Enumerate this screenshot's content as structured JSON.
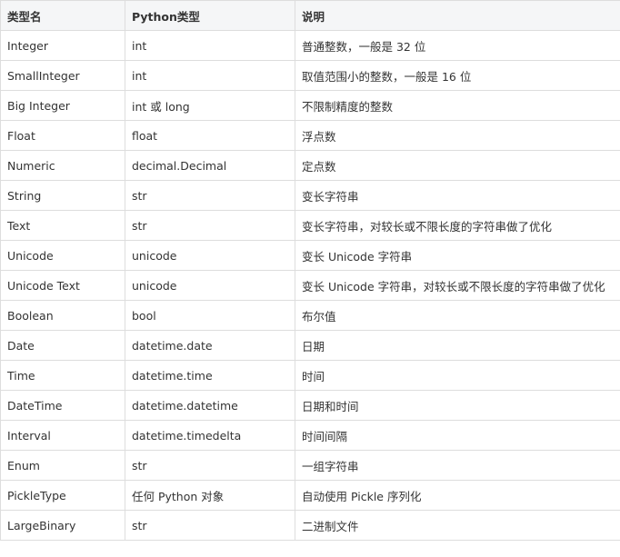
{
  "table": {
    "headers": [
      "类型名",
      "Python类型",
      "说明"
    ],
    "rows": [
      [
        "Integer",
        "int",
        "普通整数，一般是 32 位"
      ],
      [
        "SmallInteger",
        "int",
        "取值范围小的整数，一般是 16 位"
      ],
      [
        "Big Integer",
        "int 或 long",
        "不限制精度的整数"
      ],
      [
        "Float",
        "float",
        "浮点数"
      ],
      [
        "Numeric",
        "decimal.Decimal",
        "定点数"
      ],
      [
        "String",
        "str",
        "变长字符串"
      ],
      [
        "Text",
        "str",
        "变长字符串，对较长或不限长度的字符串做了优化"
      ],
      [
        "Unicode",
        "unicode",
        "变长 Unicode 字符串"
      ],
      [
        "Unicode Text",
        "unicode",
        "变长 Unicode 字符串，对较长或不限长度的字符串做了优化"
      ],
      [
        "Boolean",
        "bool",
        "布尔值"
      ],
      [
        "Date",
        "datetime.date",
        "日期"
      ],
      [
        "Time",
        "datetime.time",
        "时间"
      ],
      [
        "DateTime",
        "datetime.datetime",
        "日期和时间"
      ],
      [
        "Interval",
        "datetime.timedelta",
        "时间间隔"
      ],
      [
        "Enum",
        "str",
        "一组字符串"
      ],
      [
        "PickleType",
        "任何 Python 对象",
        "自动使用 Pickle 序列化"
      ],
      [
        "LargeBinary",
        "str",
        "二进制文件"
      ]
    ]
  }
}
